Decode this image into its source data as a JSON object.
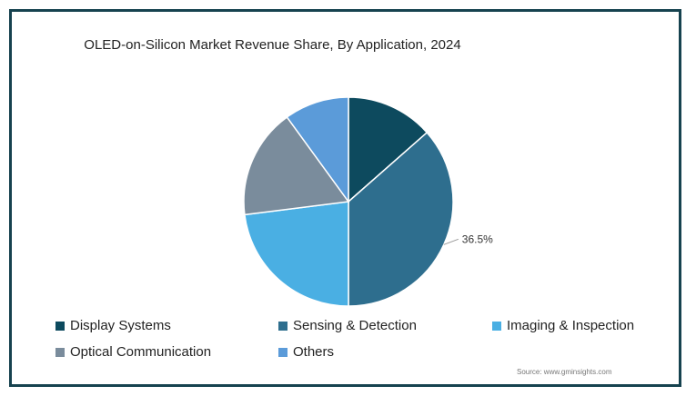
{
  "chart_data": {
    "type": "pie",
    "title": "OLED-on-Silicon Market Revenue Share, By Application, 2024",
    "slices": [
      {
        "name": "Display Systems",
        "value": 13.5,
        "color": "#0d4a5e"
      },
      {
        "name": "Sensing & Detection",
        "value": 36.5,
        "color": "#2e6e8e",
        "label": "36.5%"
      },
      {
        "name": "Imaging & Inspection",
        "value": 23.0,
        "color": "#4aafe3"
      },
      {
        "name": "Optical Communication",
        "value": 17.0,
        "color": "#7a8c9c"
      },
      {
        "name": "Others",
        "value": 10.0,
        "color": "#5b9bd9"
      }
    ],
    "legend_position": "bottom"
  },
  "source": "Source: www.gminsights.com"
}
